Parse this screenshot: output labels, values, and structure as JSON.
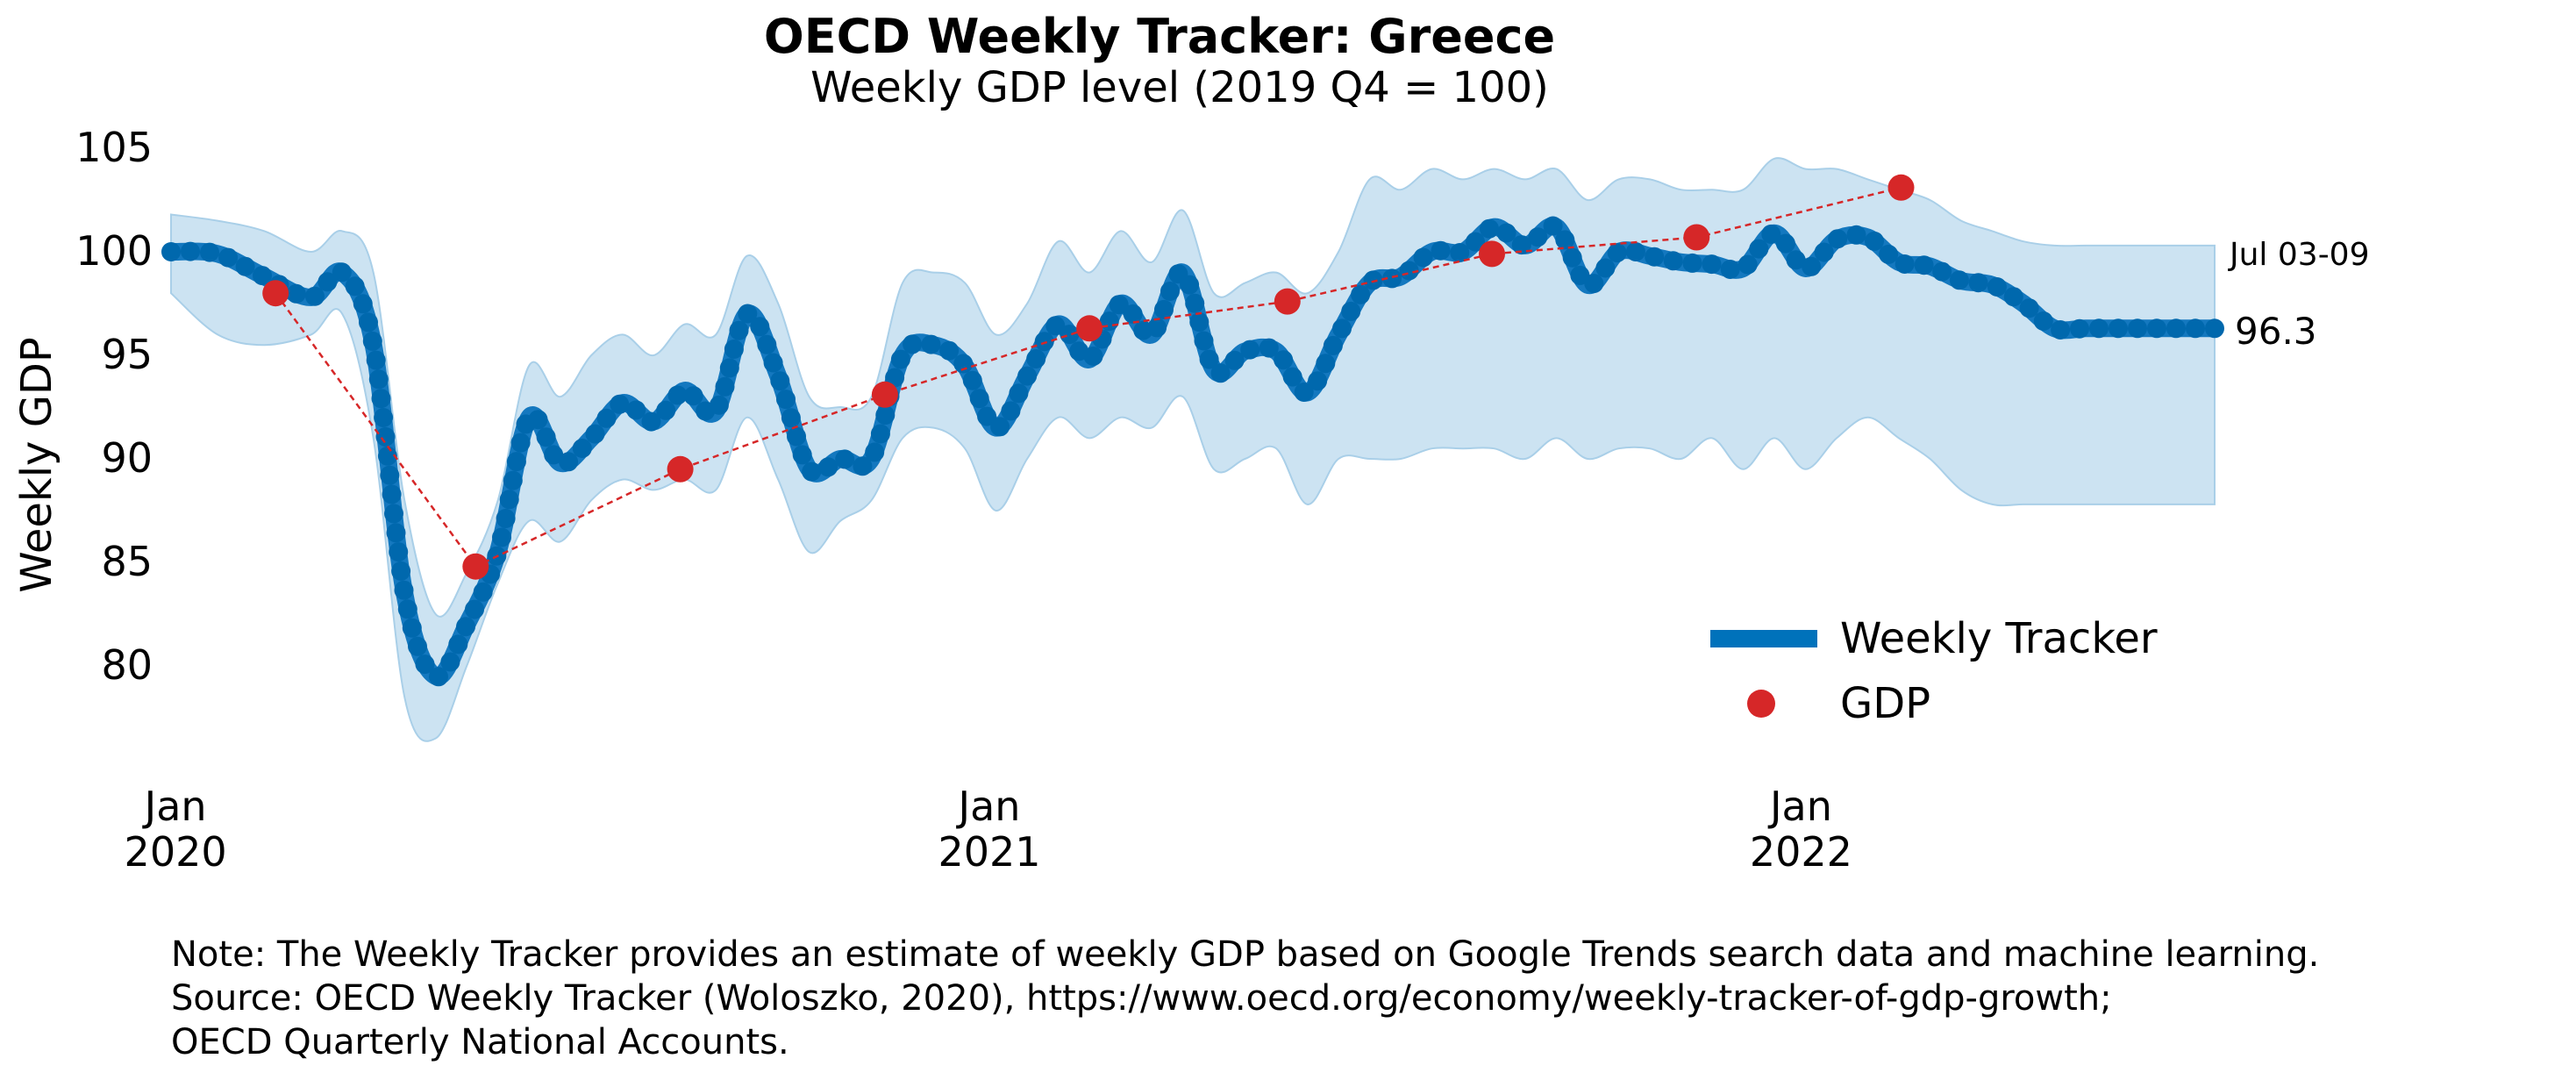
{
  "chart_data": {
    "type": "line",
    "title": "OECD Weekly Tracker: Greece",
    "subtitle": "Weekly GDP level (2019 Q4 = 100)",
    "ylabel": "Weekly GDP",
    "xlabel": "",
    "ylim": [
      75,
      107
    ],
    "yticks": [
      "80",
      "85",
      "90",
      "95",
      "100",
      "105"
    ],
    "xticks": [
      {
        "month": "Jan",
        "year": "2020",
        "x": "2020-01-01"
      },
      {
        "month": "Jan",
        "year": "2021",
        "x": "2021-01-01"
      },
      {
        "month": "Jan",
        "year": "2022",
        "x": "2022-01-01"
      }
    ],
    "xlim": [
      "2019-12-30",
      "2022-07-06"
    ],
    "grid": false,
    "legend_position": "lower-right",
    "series": [
      {
        "name": "Weekly Tracker",
        "color": "#0072bb",
        "x": [
          "2019-12-30",
          "2020-01-20",
          "2020-02-10",
          "2020-03-02",
          "2020-03-16",
          "2020-03-30",
          "2020-04-13",
          "2020-04-27",
          "2020-05-11",
          "2020-05-25",
          "2020-06-08",
          "2020-06-22",
          "2020-07-06",
          "2020-07-20",
          "2020-08-03",
          "2020-08-17",
          "2020-08-31",
          "2020-09-14",
          "2020-09-28",
          "2020-10-12",
          "2020-10-26",
          "2020-11-09",
          "2020-11-23",
          "2020-12-07",
          "2020-12-21",
          "2021-01-04",
          "2021-01-18",
          "2021-02-01",
          "2021-02-15",
          "2021-03-01",
          "2021-03-15",
          "2021-03-29",
          "2021-04-12",
          "2021-04-26",
          "2021-05-10",
          "2021-05-24",
          "2021-06-07",
          "2021-06-21",
          "2021-07-05",
          "2021-07-19",
          "2021-08-02",
          "2021-08-16",
          "2021-08-30",
          "2021-09-13",
          "2021-09-27",
          "2021-10-11",
          "2021-10-25",
          "2021-11-08",
          "2021-11-22",
          "2021-12-06",
          "2021-12-20",
          "2022-01-03",
          "2022-01-17",
          "2022-01-31",
          "2022-02-14",
          "2022-02-28",
          "2022-03-14",
          "2022-03-28",
          "2022-04-11",
          "2022-04-25",
          "2022-05-09",
          "2022-05-23",
          "2022-06-06",
          "2022-06-20",
          "2022-07-06"
        ],
        "values": [
          100.0,
          99.9,
          98.8,
          97.8,
          99.0,
          95.5,
          83.5,
          79.5,
          82.0,
          85.5,
          92.0,
          89.8,
          91.0,
          92.7,
          91.8,
          93.3,
          92.3,
          97.0,
          94.0,
          89.5,
          90.0,
          90.0,
          95.0,
          95.5,
          94.5,
          91.5,
          94.0,
          96.5,
          94.8,
          97.5,
          96.0,
          99.0,
          94.3,
          95.2,
          95.2,
          93.2,
          96.0,
          98.5,
          98.8,
          100.0,
          100.0,
          101.2,
          100.3,
          101.2,
          98.4,
          100.0,
          99.8,
          99.5,
          99.4,
          99.2,
          100.9,
          99.2,
          100.6,
          100.7,
          99.5,
          99.3,
          98.6,
          98.4,
          97.5,
          96.3,
          96.3,
          96.3,
          96.3,
          96.3,
          96.3
        ],
        "lower": [
          98,
          96,
          95.5,
          96,
          97,
          91,
          78.5,
          76.5,
          80,
          84,
          87,
          86,
          88,
          89,
          88.5,
          89,
          88.5,
          92,
          89,
          85.5,
          87,
          88,
          91,
          91.5,
          90.5,
          87.5,
          90,
          92,
          91,
          92,
          91.5,
          93,
          89.5,
          90,
          90.5,
          87.8,
          90,
          90,
          90,
          90.5,
          90.5,
          90.5,
          90,
          91,
          90,
          90.5,
          90.5,
          90,
          91,
          89.5,
          91,
          89.5,
          91,
          92,
          91,
          90,
          88.5,
          87.8,
          87.8,
          87.8,
          87.8,
          87.8,
          87.8,
          87.8,
          87.8
        ],
        "upper": [
          101.8,
          101.5,
          101,
          100,
          101,
          99,
          88,
          82.5,
          84.5,
          88,
          94.5,
          93,
          95,
          96,
          95,
          96.5,
          96,
          99.8,
          97.5,
          93,
          92.5,
          93,
          98.5,
          99,
          98.5,
          96,
          97.5,
          100.5,
          99,
          101,
          99.5,
          102,
          98,
          98.5,
          99,
          98,
          100,
          103.5,
          103,
          104,
          103.5,
          104,
          103.5,
          104,
          102.5,
          103.5,
          103.5,
          103,
          103,
          103,
          104.5,
          104,
          104,
          103.5,
          103,
          102.5,
          101.5,
          101,
          100.5,
          100.3,
          100.3,
          100.3,
          100.3,
          100.3,
          100.3
        ]
      },
      {
        "name": "GDP",
        "color": "#d62728",
        "x": [
          "2020-02-15",
          "2020-05-15",
          "2020-08-15",
          "2020-11-15",
          "2021-02-15",
          "2021-05-15",
          "2021-08-15",
          "2021-11-15",
          "2022-02-15"
        ],
        "values": [
          98.0,
          84.8,
          89.5,
          93.1,
          96.3,
          97.6,
          99.9,
          100.7,
          103.1
        ]
      }
    ],
    "annotations": {
      "last_date": "Jul 03-09",
      "last_value": "96.3"
    }
  },
  "notes": {
    "line1": "Note: The Weekly Tracker provides an estimate of weekly GDP based on Google Trends search data and machine learning.",
    "line2": "Source: OECD Weekly Tracker (Woloszko, 2020), https://www.oecd.org/economy/weekly-tracker-of-gdp-growth;",
    "line3": "OECD Quarterly National Accounts."
  }
}
